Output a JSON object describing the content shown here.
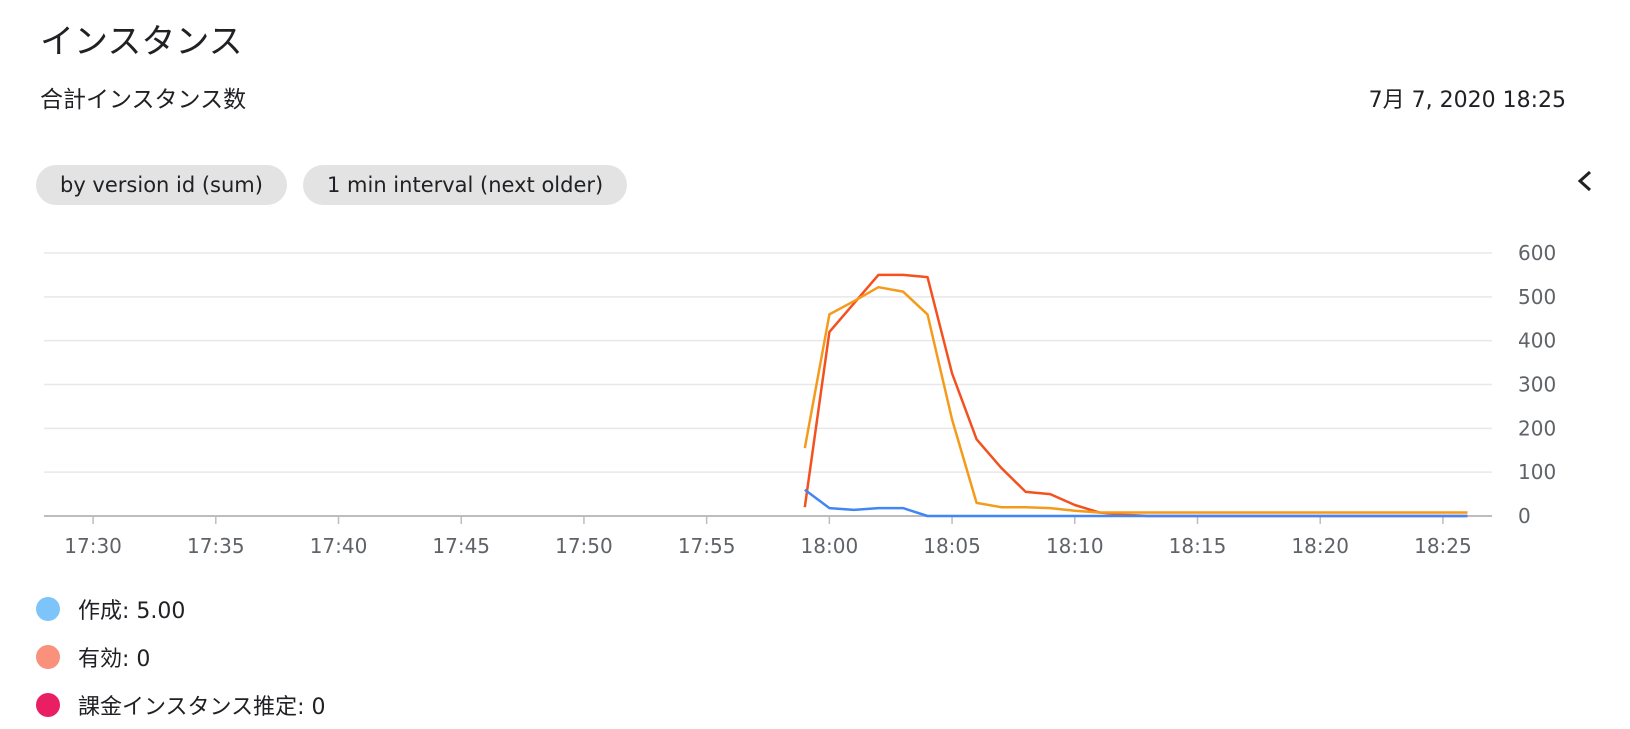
{
  "header": {
    "title": "インスタンス",
    "subtitle": "合計インスタンス数",
    "timestamp": "7月 7, 2020 18:25"
  },
  "chips": [
    {
      "label": "by version id (sum)"
    },
    {
      "label": "1 min interval (next older)"
    }
  ],
  "icons": {
    "collapse": "chevron-left-icon"
  },
  "legend": [
    {
      "label": "作成: 5.00",
      "color": "#7cc4fa"
    },
    {
      "label": "有効: 0",
      "color": "#f9917c"
    },
    {
      "label": "課金インスタンス推定: 0",
      "color": "#e91e63"
    }
  ],
  "chart_data": {
    "type": "line",
    "x_unit": "minutes",
    "x_tick_labels": [
      "17:30",
      "17:35",
      "17:40",
      "17:45",
      "17:50",
      "17:55",
      "18:00",
      "18:05",
      "18:10",
      "18:15",
      "18:20",
      "18:25"
    ],
    "y_ticks": [
      0,
      100,
      200,
      300,
      400,
      500,
      600
    ],
    "ylim": [
      0,
      600
    ],
    "xlim": [
      "17:28",
      "18:27"
    ],
    "grid": true,
    "series": [
      {
        "color": "#f4511e",
        "x": [
          "17:59",
          "18:00",
          "18:01",
          "18:02",
          "18:03",
          "18:04",
          "18:05",
          "18:06",
          "18:07",
          "18:08",
          "18:09",
          "18:10",
          "18:11",
          "18:12",
          "18:13",
          "18:26"
        ],
        "values": [
          20,
          420,
          485,
          550,
          550,
          545,
          325,
          175,
          110,
          55,
          50,
          25,
          8,
          3,
          0,
          0
        ]
      },
      {
        "color": "#f59b1c",
        "x": [
          "17:59",
          "18:00",
          "18:01",
          "18:02",
          "18:03",
          "18:04",
          "18:05",
          "18:06",
          "18:07",
          "18:08",
          "18:09",
          "18:10",
          "18:11",
          "18:12",
          "18:26"
        ],
        "values": [
          155,
          460,
          490,
          522,
          512,
          460,
          220,
          30,
          20,
          20,
          18,
          12,
          8,
          8,
          8
        ]
      },
      {
        "color": "#4285f4",
        "x": [
          "17:59",
          "18:00",
          "18:01",
          "18:02",
          "18:03",
          "18:04",
          "18:26"
        ],
        "values": [
          60,
          18,
          14,
          18,
          18,
          0,
          0
        ]
      }
    ]
  }
}
